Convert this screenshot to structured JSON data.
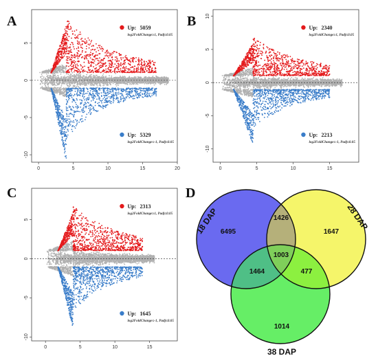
{
  "chart_data": [
    {
      "panel": "A",
      "type": "scatter",
      "x_ticks": [
        "0",
        "5",
        "10",
        "15",
        "20"
      ],
      "y_ticks": [
        "-10",
        "-5",
        "0",
        "5"
      ],
      "xlim": [
        -1,
        20
      ],
      "ylim": [
        -11,
        9.5
      ],
      "up": {
        "label": "Up:",
        "count": "5059",
        "note": "log2FoldChange≥1, Padj≤0.05",
        "color": "#e41a1c"
      },
      "down": {
        "label": "Up:",
        "count": "5329",
        "note": "log2FoldChange≤-1, Padj≤0.05",
        "color": "#3a7dc9"
      },
      "params": {
        "upMaxX": 17,
        "upPeakY": 6.5,
        "downMinY": -10.5,
        "peakX": 4
      }
    },
    {
      "panel": "B",
      "type": "scatter",
      "x_ticks": [
        "0",
        "5",
        "10",
        "15"
      ],
      "y_ticks": [
        "-10",
        "-5",
        "0",
        "5",
        "10"
      ],
      "xlim": [
        -1,
        19
      ],
      "ylim": [
        -12,
        11
      ],
      "up": {
        "label": "Up:",
        "count": "2340",
        "note": "log2FoldChange≥1, Padj≤0.05",
        "color": "#e41a1c"
      },
      "down": {
        "label": "Up:",
        "count": "2213",
        "note": "log2FoldChange≤-1, Padj≤0.05",
        "color": "#3a7dc9"
      },
      "params": {
        "upMaxX": 15,
        "upPeakY": 5,
        "downMinY": -9,
        "peakX": 4.5
      }
    },
    {
      "panel": "C",
      "type": "scatter",
      "x_ticks": [
        "0",
        "5",
        "10",
        "15"
      ],
      "y_ticks": [
        "-10",
        "-5",
        "0",
        "5"
      ],
      "xlim": [
        -2,
        19
      ],
      "ylim": [
        -10.5,
        9
      ],
      "up": {
        "label": "Up:",
        "count": "2313",
        "note": "log2FoldChange≥1, Padj≤0.05",
        "color": "#e41a1c"
      },
      "down": {
        "label": "Up:",
        "count": "1645",
        "note": "log2FoldChange≤-1, Padj≤0.05",
        "color": "#3a7dc9"
      },
      "params": {
        "upMaxX": 14,
        "upPeakY": 5,
        "downMinY": -8.5,
        "peakX": 4
      }
    },
    {
      "panel": "D",
      "type": "venn",
      "sets": [
        {
          "name": "18 DAP",
          "color": "#6a6af0"
        },
        {
          "name": "28 DAP",
          "color": "#f5f56a"
        },
        {
          "name": "38 DAP",
          "color": "#66ee66"
        }
      ],
      "regions": {
        "only_18": "6495",
        "only_28": "1647",
        "only_38": "1014",
        "18_28": "1426",
        "18_38": "1464",
        "28_38": "477",
        "all": "1003"
      }
    }
  ],
  "labels": {
    "A": "A",
    "B": "B",
    "C": "C",
    "D": "D"
  }
}
